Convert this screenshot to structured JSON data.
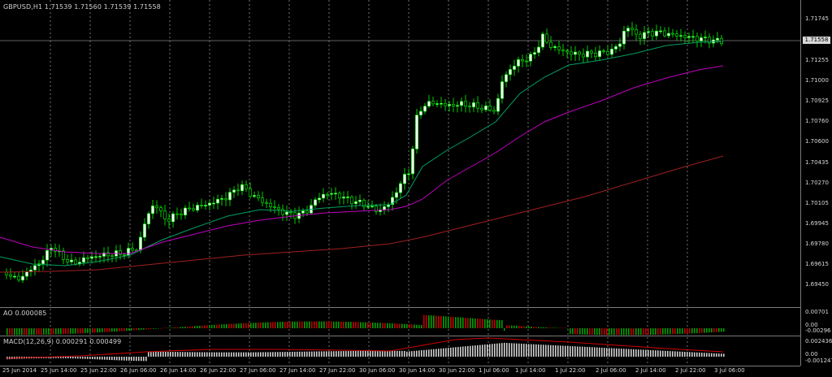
{
  "main_title": "GBPUSD,H1  1.71539 1.71560 1.71539 1.71558",
  "current_price": "1.71558",
  "price_axis": [
    "1.71745",
    "1.71500",
    "1.71255",
    "1.71000",
    "1.70925",
    "1.70760",
    "1.70600",
    "1.70435",
    "1.70270",
    "1.70105",
    "1.69945",
    "1.69780",
    "1.69615",
    "1.69450"
  ],
  "time_axis": [
    "25 Jun 2014",
    "25 Jun 14:00",
    "25 Jun 22:00",
    "26 Jun 06:00",
    "26 Jun 14:00",
    "26 Jun 22:00",
    "27 Jun 06:00",
    "27 Jun 14:00",
    "27 Jun 22:00",
    "30 Jun 06:00",
    "30 Jun 14:00",
    "30 Jun 22:00",
    "1 Jul 06:00",
    "1 Jul 14:00",
    "1 Jul 22:00",
    "2 Jul 06:00",
    "2 Jul 14:00",
    "2 Jul 22:00",
    "3 Jul 06:00"
  ],
  "ao": {
    "title": "AO 0.000085",
    "axis": [
      "0.00701",
      "0.00",
      "-0.00296"
    ]
  },
  "macd": {
    "title": "MACD(12,26,9) 0.000291 0.000499",
    "axis": [
      "0.002436",
      "0.00",
      "-0.001247"
    ]
  },
  "colors": {
    "bull": "#ffffff",
    "bear": "#000000",
    "wick": "#00ff00",
    "ma_fast": "#00a060",
    "ma_mid": "#c000c0",
    "ma_slow": "#a02020",
    "grid": "#ffffff",
    "ao_up": "#00a000",
    "ao_down": "#c00000",
    "macd_hist": "#d0d0d0",
    "macd_signal": "#d00000"
  }
}
